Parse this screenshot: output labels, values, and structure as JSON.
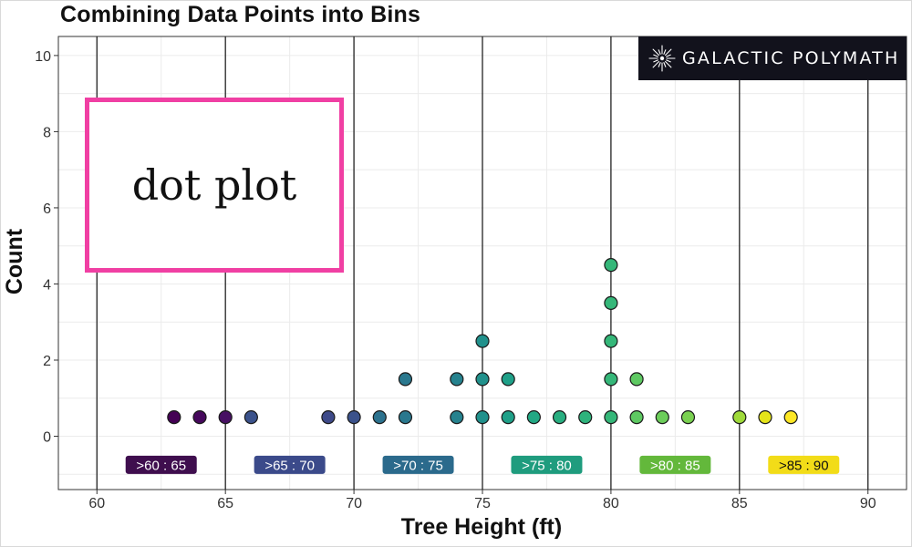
{
  "title": "Combining Data Points into Bins",
  "logo": {
    "text": "GALACTIC POLYMATH",
    "icon": "starburst-icon"
  },
  "callout": {
    "text": "dot plot",
    "border_color": "#f03fa3"
  },
  "chart_data": {
    "type": "scatter",
    "subtype": "dot plot",
    "title": "Combining Data Points into Bins",
    "xlabel": "Tree Height (ft)",
    "ylabel": "Count",
    "xlim": [
      58.5,
      91.5
    ],
    "ylim": [
      -1.4,
      10.5
    ],
    "x_ticks": [
      60,
      65,
      70,
      75,
      80,
      85,
      90
    ],
    "y_ticks": [
      0,
      2,
      4,
      6,
      8,
      10
    ],
    "grid": true,
    "bin_edges": [
      60,
      65,
      70,
      75,
      80,
      85,
      90
    ],
    "points": [
      {
        "x": 63,
        "y": 0.5,
        "bin": 0
      },
      {
        "x": 64,
        "y": 0.5,
        "bin": 0
      },
      {
        "x": 65,
        "y": 0.5,
        "bin": 0
      },
      {
        "x": 66,
        "y": 0.5,
        "bin": 1
      },
      {
        "x": 69,
        "y": 0.5,
        "bin": 1
      },
      {
        "x": 70,
        "y": 0.5,
        "bin": 1
      },
      {
        "x": 71,
        "y": 0.5,
        "bin": 2
      },
      {
        "x": 72,
        "y": 0.5,
        "bin": 2
      },
      {
        "x": 72,
        "y": 1.5,
        "bin": 2
      },
      {
        "x": 74,
        "y": 0.5,
        "bin": 2
      },
      {
        "x": 74,
        "y": 1.5,
        "bin": 2
      },
      {
        "x": 75,
        "y": 0.5,
        "bin": 2
      },
      {
        "x": 75,
        "y": 1.5,
        "bin": 2
      },
      {
        "x": 75,
        "y": 2.5,
        "bin": 2
      },
      {
        "x": 76,
        "y": 0.5,
        "bin": 3
      },
      {
        "x": 76,
        "y": 1.5,
        "bin": 3
      },
      {
        "x": 77,
        "y": 0.5,
        "bin": 3
      },
      {
        "x": 78,
        "y": 0.5,
        "bin": 3
      },
      {
        "x": 79,
        "y": 0.5,
        "bin": 3
      },
      {
        "x": 80,
        "y": 0.5,
        "bin": 3
      },
      {
        "x": 80,
        "y": 1.5,
        "bin": 3
      },
      {
        "x": 80,
        "y": 2.5,
        "bin": 3
      },
      {
        "x": 80,
        "y": 3.5,
        "bin": 3
      },
      {
        "x": 80,
        "y": 4.5,
        "bin": 3
      },
      {
        "x": 81,
        "y": 0.5,
        "bin": 4
      },
      {
        "x": 81,
        "y": 1.5,
        "bin": 4
      },
      {
        "x": 82,
        "y": 0.5,
        "bin": 4
      },
      {
        "x": 83,
        "y": 0.5,
        "bin": 4
      },
      {
        "x": 85,
        "y": 0.5,
        "bin": 4
      },
      {
        "x": 86,
        "y": 0.5,
        "bin": 5
      },
      {
        "x": 87,
        "y": 0.5,
        "bin": 5
      }
    ],
    "bins": [
      {
        "label": ">60 : 65",
        "center": 62.5,
        "color": "#3f0e4e"
      },
      {
        "label": ">65 : 70",
        "center": 67.5,
        "color": "#3b4a8a"
      },
      {
        "label": ">70 : 75",
        "center": 72.5,
        "color": "#2b6a8c"
      },
      {
        "label": ">75 : 80",
        "center": 77.5,
        "color": "#1f9c7e"
      },
      {
        "label": ">80 : 85",
        "center": 82.5,
        "color": "#63b83b"
      },
      {
        "label": ">85 : 90",
        "center": 87.5,
        "color": "#f2dc18"
      }
    ],
    "point_colors": {
      "63": "#440154",
      "64": "#46085c",
      "65": "#471063",
      "66": "#3b528b",
      "69": "#3e4a89",
      "70": "#3b528b",
      "71": "#2c728e",
      "72": "#2a788e",
      "74": "#26828e",
      "75": "#21918c",
      "76": "#1fa088",
      "77": "#22a884",
      "78": "#28ae80",
      "79": "#2eb37c",
      "80": "#35b779",
      "81": "#5ec962",
      "82": "#6ccd5a",
      "83": "#7ad151",
      "85": "#9fda3a",
      "86": "#e5e419",
      "87": "#fde725"
    }
  }
}
